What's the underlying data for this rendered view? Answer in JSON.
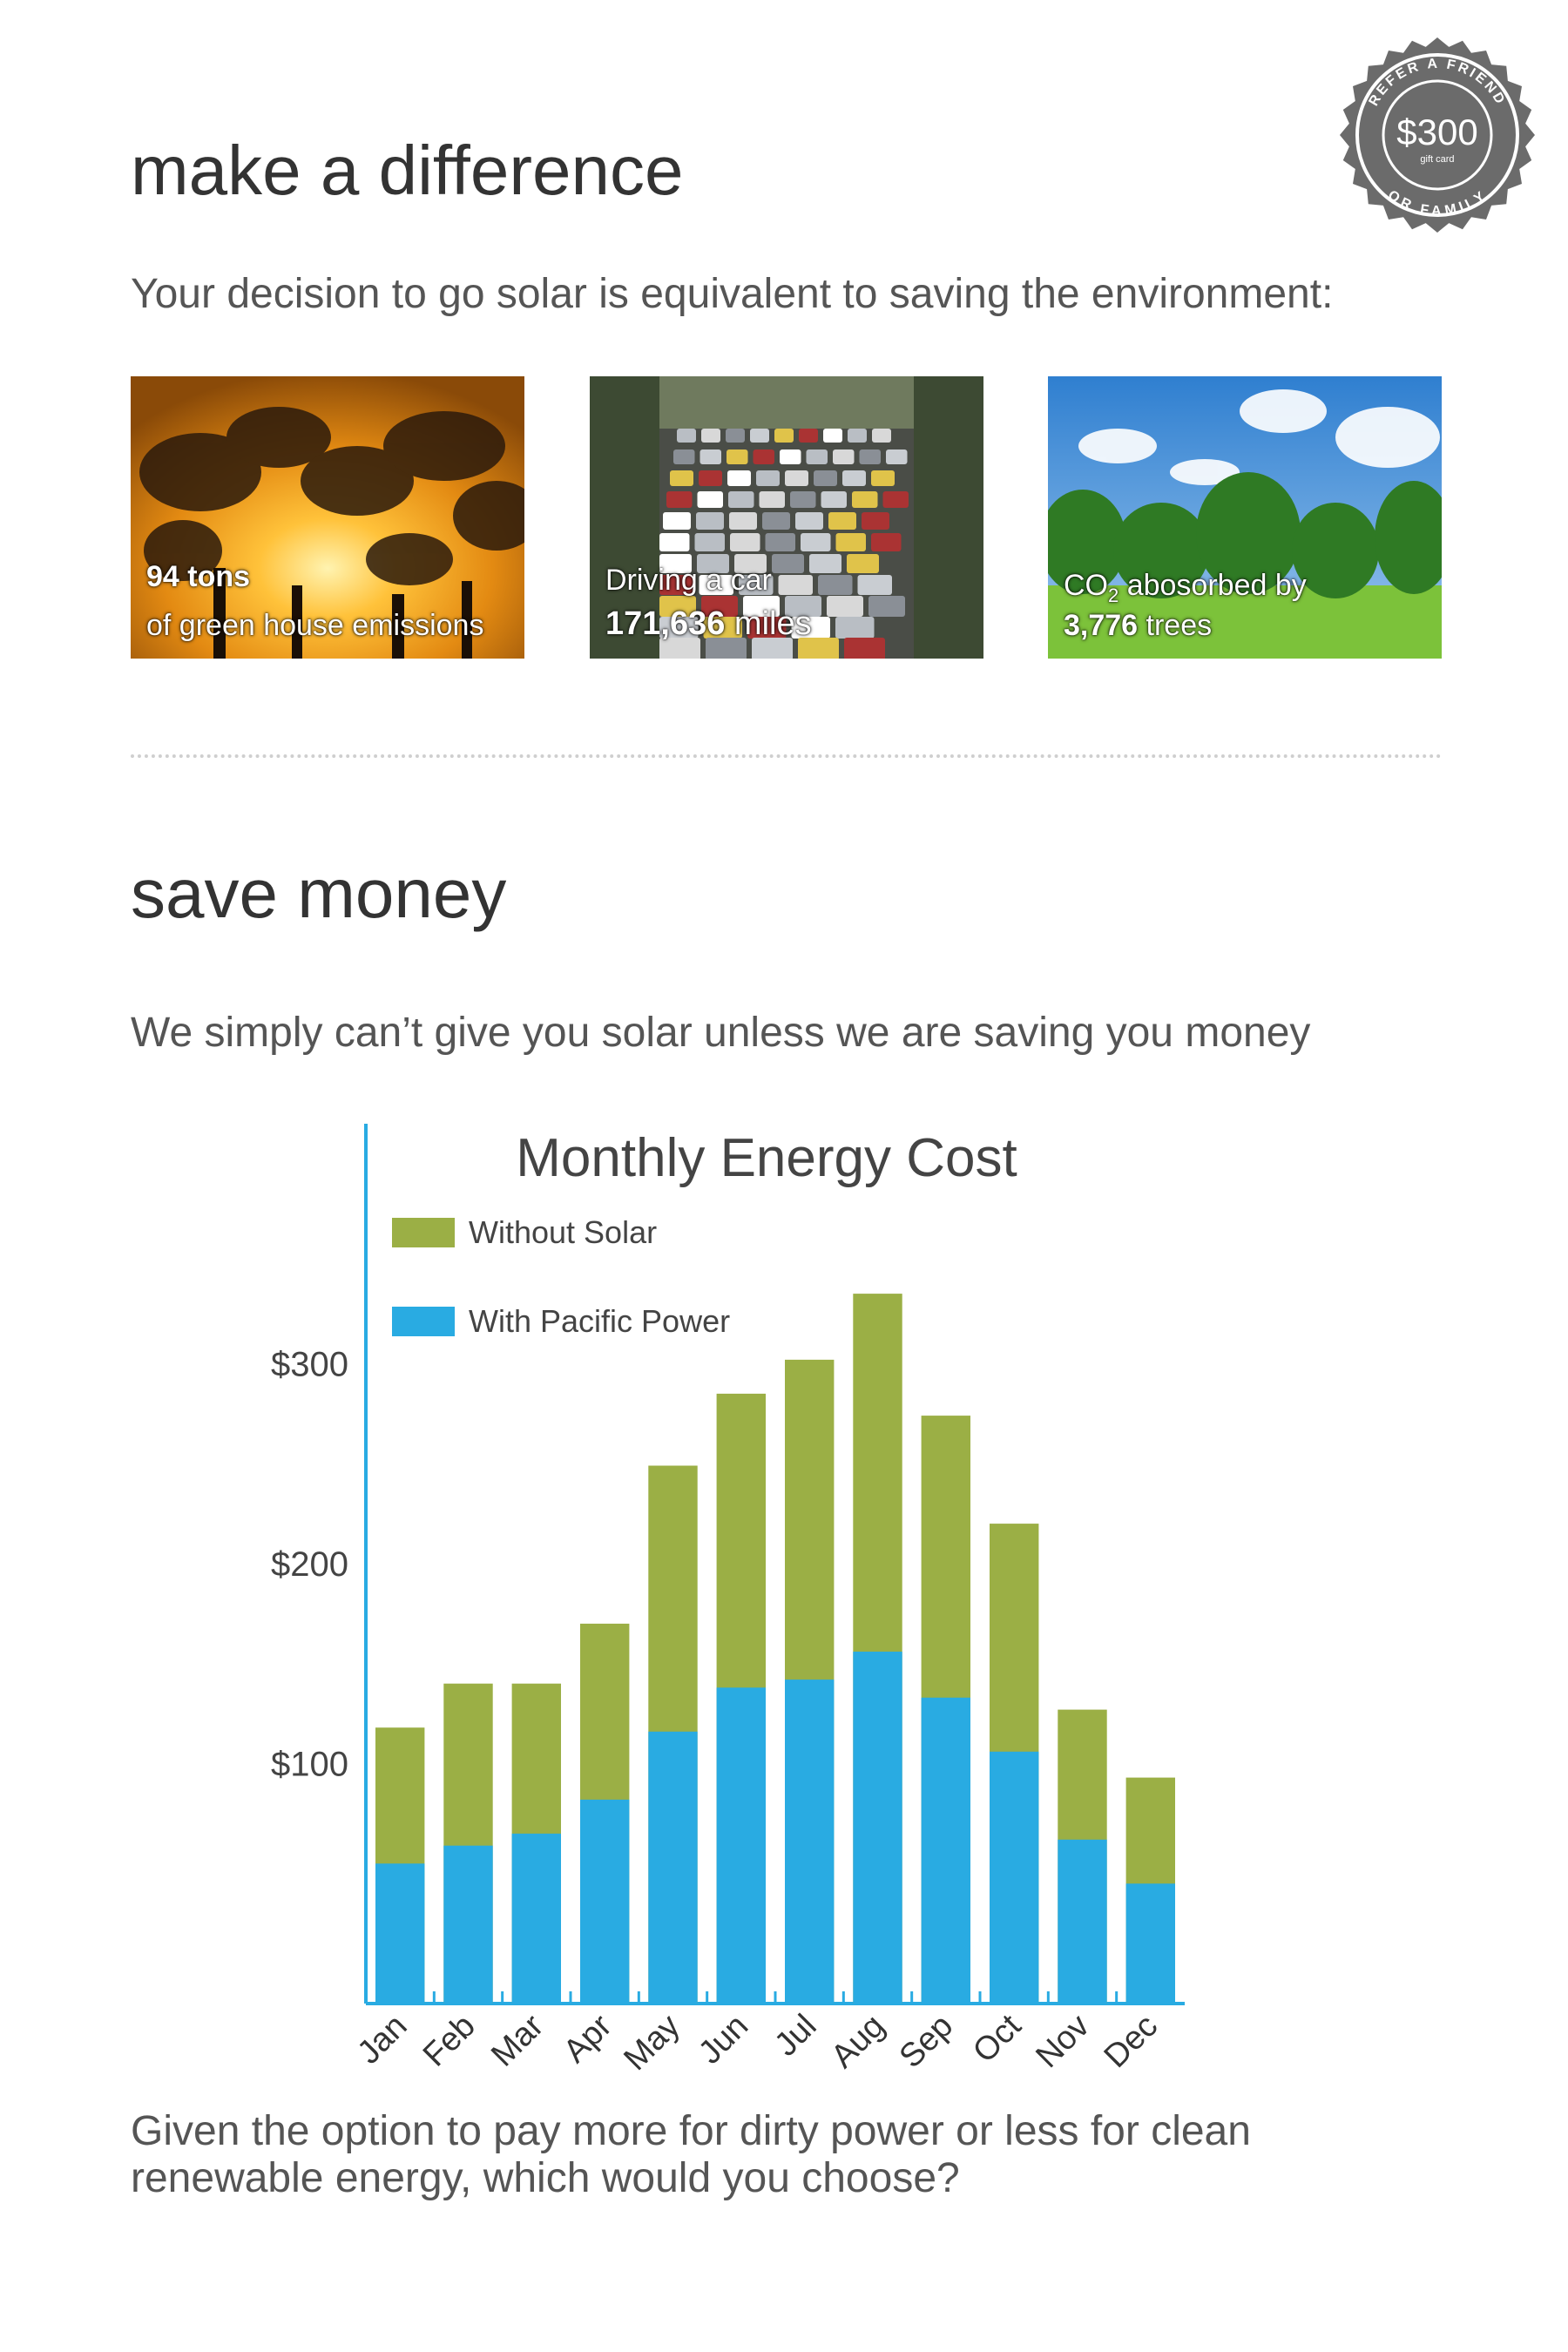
{
  "badge": {
    "ring_top": "REFER A FRIEND",
    "ring_bottom": "OR FAMILY",
    "amount": "$300",
    "sub": "gift card"
  },
  "environment": {
    "heading": "make a difference",
    "lead": "Your decision to go solar is equivalent to saving the environment:",
    "tiles": [
      {
        "value": "94 tons",
        "label": "of green house emissions"
      },
      {
        "label": "Driving a car",
        "value": "171,636",
        "unit": " miles"
      },
      {
        "label_pre": "CO",
        "label_sub": "2",
        "label_post": " abosorbed by",
        "value": "3,776",
        "unit": " trees"
      }
    ]
  },
  "money": {
    "heading": "save money",
    "lead": "We simply can’t give you solar unless we are saving you money"
  },
  "chart_data": {
    "type": "bar",
    "stacking": "overlay",
    "title": "Monthly Energy Cost",
    "xlabel": "",
    "ylabel": "",
    "categories": [
      "Jan",
      "Feb",
      "Mar",
      "Apr",
      "May",
      "Jun",
      "Jul",
      "Aug",
      "Sep",
      "Oct",
      "Nov",
      "Dec"
    ],
    "series": [
      {
        "name": "Without Solar",
        "color": "#9baf45",
        "values": [
          118,
          140,
          140,
          170,
          249,
          285,
          302,
          335,
          274,
          220,
          127,
          93
        ]
      },
      {
        "name": "With Pacific Power",
        "color": "#29abe2",
        "values": [
          50,
          59,
          65,
          82,
          116,
          138,
          142,
          156,
          133,
          106,
          62,
          40
        ]
      }
    ],
    "yticks": [
      100,
      200,
      300
    ],
    "ytick_labels": [
      "$100",
      "$200",
      "$300"
    ],
    "ylim": [
      -20,
      420
    ],
    "legend_position": "top-left",
    "axis_color": "#29abe2"
  },
  "closing": {
    "line1": "Given the option to pay more for dirty power or less for clean",
    "line2": "renewable energy, which would you choose?"
  }
}
